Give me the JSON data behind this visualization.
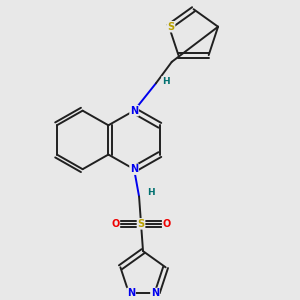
{
  "background_color": "#e8e8e8",
  "bond_color": "#202020",
  "N_color": "#0000ee",
  "S_color": "#b8a000",
  "O_color": "#ee0000",
  "H_color": "#007070",
  "figsize": [
    3.0,
    3.0
  ],
  "dpi": 100,
  "xlim": [
    0,
    300
  ],
  "ylim": [
    0,
    300
  ]
}
